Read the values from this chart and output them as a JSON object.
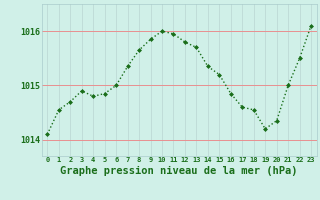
{
  "x": [
    0,
    1,
    2,
    3,
    4,
    5,
    6,
    7,
    8,
    9,
    10,
    11,
    12,
    13,
    14,
    15,
    16,
    17,
    18,
    19,
    20,
    21,
    22,
    23
  ],
  "y": [
    1014.1,
    1014.55,
    1014.7,
    1014.9,
    1014.8,
    1014.85,
    1015.0,
    1015.35,
    1015.65,
    1015.85,
    1016.0,
    1015.95,
    1015.8,
    1015.7,
    1015.35,
    1015.2,
    1014.85,
    1014.6,
    1014.55,
    1014.2,
    1014.35,
    1015.0,
    1015.5,
    1016.1
  ],
  "line_color": "#1a6e1a",
  "marker_color": "#1a6e1a",
  "bg_color": "#d0f0e8",
  "grid_color_v": "#c0ddd8",
  "grid_color_h": "#e8a0a0",
  "xlabel": "Graphe pression niveau de la mer (hPa)",
  "tick_color": "#1a6e1a",
  "yticks": [
    1014,
    1015,
    1016
  ],
  "ylim": [
    1013.7,
    1016.5
  ],
  "xlim": [
    -0.5,
    23.5
  ]
}
